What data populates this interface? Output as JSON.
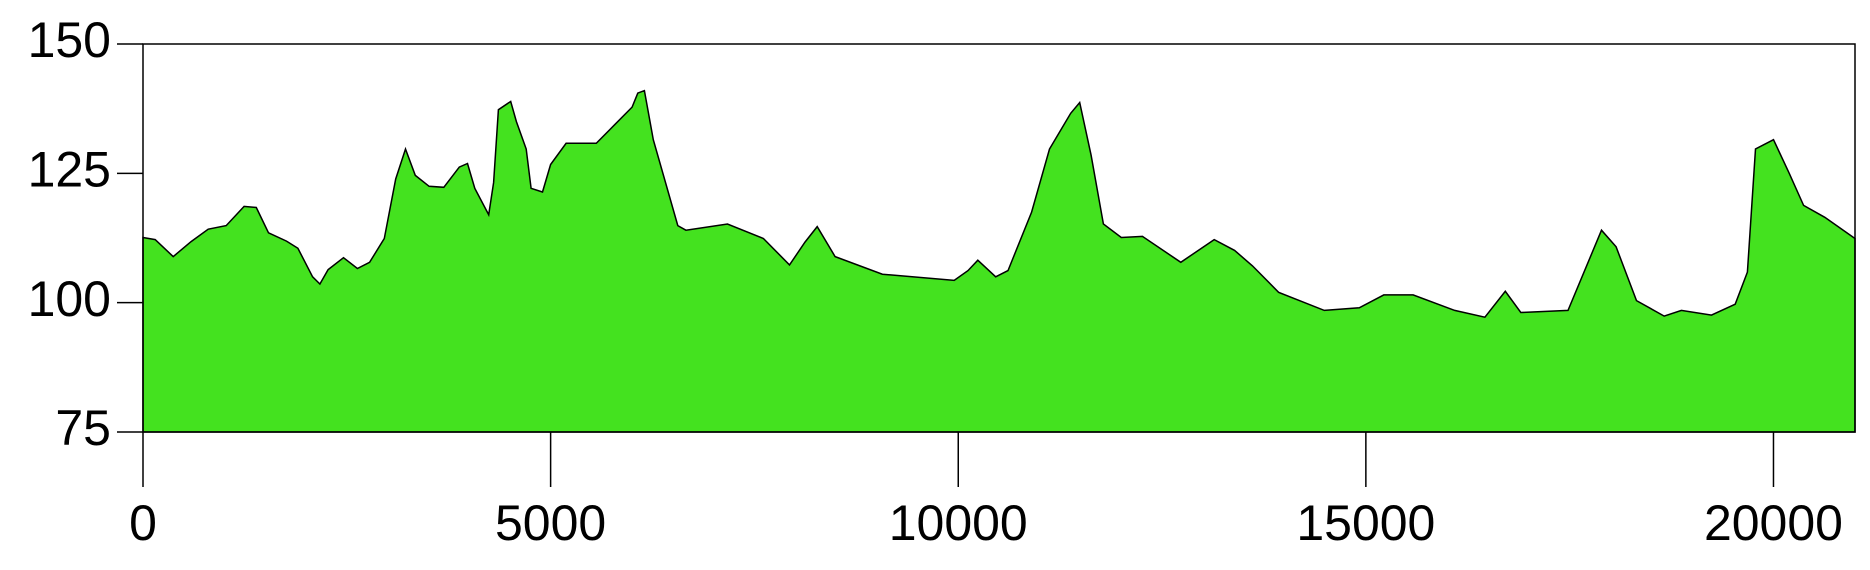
{
  "chart_data": {
    "type": "area",
    "color": "#44e21f",
    "line_color": "#000000",
    "x": [
      0,
      150,
      370,
      590,
      800,
      1020,
      1240,
      1390,
      1540,
      1760,
      1900,
      2080,
      2170,
      2270,
      2460,
      2630,
      2780,
      2960,
      3100,
      3220,
      3340,
      3510,
      3690,
      3880,
      3980,
      4070,
      4240,
      4300,
      4360,
      4510,
      4580,
      4700,
      4760,
      4900,
      5000,
      5190,
      5560,
      5780,
      6000,
      6070,
      6150,
      6260,
      6560,
      6660,
      7170,
      7610,
      7930,
      8120,
      8270,
      8490,
      9070,
      9950,
      10120,
      10240,
      10460,
      10610,
      10900,
      11120,
      11380,
      11490,
      11630,
      11780,
      12000,
      12260,
      12730,
      13140,
      13390,
      13610,
      13930,
      14490,
      14920,
      15220,
      15580,
      16090,
      16460,
      16710,
      16900,
      17480,
      17890,
      18070,
      18320,
      18660,
      18870,
      19240,
      19530,
      19680,
      19780,
      20000,
      20190,
      20370,
      20630,
      21000
    ],
    "values": [
      112.6,
      112.2,
      108.9,
      111.8,
      114.2,
      114.9,
      118.6,
      118.4,
      113.5,
      111.9,
      110.5,
      105,
      103.6,
      106.4,
      108.7,
      106.6,
      107.8,
      112.4,
      123.9,
      129.7,
      124.6,
      122.5,
      122.3,
      126.2,
      126.9,
      122.1,
      117,
      123.2,
      137.3,
      138.9,
      135,
      129.7,
      122.1,
      121.4,
      126.7,
      130.8,
      130.8,
      134.3,
      137.8,
      140.5,
      141,
      131.5,
      114.9,
      114,
      115.2,
      112.4,
      107.3,
      111.7,
      114.7,
      108.9,
      105.5,
      104.3,
      106.2,
      108.2,
      105,
      106.2,
      117.5,
      129.7,
      136.6,
      138.7,
      128.5,
      115.2,
      112.6,
      112.8,
      107.8,
      112.2,
      110.1,
      107.1,
      102,
      98.5,
      99,
      101.5,
      101.5,
      98.5,
      97.2,
      102.2,
      98.1,
      98.5,
      114,
      110.8,
      100.4,
      97.4,
      98.5,
      97.6,
      99.7,
      105.9,
      129.7,
      131.5,
      125.1,
      118.8,
      116.5,
      112.4
    ],
    "xlim": [
      0,
      21000
    ],
    "ylim": [
      75,
      150
    ],
    "xticks": [
      0,
      5000,
      10000,
      15000,
      20000
    ],
    "yticks": [
      75,
      100,
      125,
      150
    ]
  }
}
